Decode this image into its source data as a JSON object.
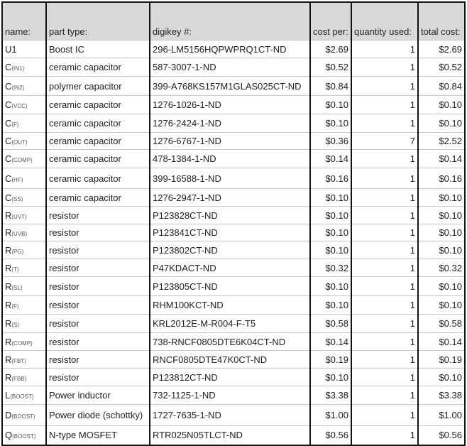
{
  "headers": [
    "name:",
    "part type:",
    "digikey #:",
    "cost per:",
    "quantity used:",
    "total cost:"
  ],
  "rows": [
    {
      "name": "U1",
      "sub": "",
      "type": "Boost IC",
      "digikey": "296-LM5156HQPWPRQ1CT-ND",
      "cost": "$2.69",
      "qty": "1",
      "total": "$2.69"
    },
    {
      "name": "C",
      "sub": "(IN1)",
      "type": "ceramic capacitor",
      "digikey": "587-3007-1-ND",
      "cost": "$0.52",
      "qty": "1",
      "total": "$0.52"
    },
    {
      "name": "C",
      "sub": "(IN2)",
      "type": "polymer capacitor",
      "digikey": "399-A768KS157M1GLAS025CT-ND",
      "cost": "$0.84",
      "qty": "1",
      "total": "$0.84"
    },
    {
      "name": "C",
      "sub": "(VCC)",
      "type": "ceramic capacitor",
      "digikey": "1276-1026-1-ND",
      "cost": "$0.10",
      "qty": "1",
      "total": "$0.10"
    },
    {
      "name": "C",
      "sub": "(F)",
      "type": "ceramic capacitor",
      "digikey": "1276-2424-1-ND",
      "cost": "$0.10",
      "qty": "1",
      "total": "$0.10"
    },
    {
      "name": "C",
      "sub": "(OUT)",
      "type": "ceramic capacitor",
      "digikey": "1276-6767-1-ND",
      "cost": "$0.36",
      "qty": "7",
      "total": "$2.52"
    },
    {
      "name": "C",
      "sub": "(COMP)",
      "type": "ceramic capacitor",
      "digikey": "478-1384-1-ND",
      "cost": "$0.14",
      "qty": "1",
      "total": "$0.14"
    },
    {
      "name": "C",
      "sub": "(HF)",
      "type": "ceramic capacitor",
      "digikey": "399-16588-1-ND",
      "cost": "$0.16",
      "qty": "1",
      "total": "$0.16"
    },
    {
      "name": "C",
      "sub": "(SS)",
      "type": "ceramic capacitor",
      "digikey": "1276-2947-1-ND",
      "cost": "$0.10",
      "qty": "1",
      "total": "$0.10"
    },
    {
      "name": "R",
      "sub": "(UVT)",
      "type": "resistor",
      "digikey": "P123828CT-ND",
      "cost": "$0.10",
      "qty": "1",
      "total": "$0.10"
    },
    {
      "name": "R",
      "sub": "(UVB)",
      "type": "resistor",
      "digikey": "P123841CT-ND",
      "cost": "$0.10",
      "qty": "1",
      "total": "$0.10"
    },
    {
      "name": "R",
      "sub": "(PG)",
      "type": "resistor",
      "digikey": "P123802CT-ND",
      "cost": "$0.10",
      "qty": "1",
      "total": "$0.10"
    },
    {
      "name": "R",
      "sub": "(T)",
      "type": "resistor",
      "digikey": "P47KDACT-ND",
      "cost": "$0.32",
      "qty": "1",
      "total": "$0.32"
    },
    {
      "name": "R",
      "sub": "(SL)",
      "type": "resistor",
      "digikey": "P123805CT-ND",
      "cost": "$0.10",
      "qty": "1",
      "total": "$0.10"
    },
    {
      "name": "R",
      "sub": "(F)",
      "type": "resistor",
      "digikey": "RHM100KCT-ND",
      "cost": "$0.10",
      "qty": "1",
      "total": "$0.10"
    },
    {
      "name": "R",
      "sub": "(S)",
      "type": "resistor",
      "digikey": "KRL2012E-M-R004-F-T5",
      "cost": "$0.58",
      "qty": "1",
      "total": "$0.58"
    },
    {
      "name": "R",
      "sub": "(COMP)",
      "type": "resistor",
      "digikey": "738-RNCF0805DTE6K04CT-ND",
      "cost": "$0.14",
      "qty": "1",
      "total": "$0.14"
    },
    {
      "name": "R",
      "sub": "(FBT)",
      "type": "resistor",
      "digikey": "RNCF0805DTE47K0CT-ND",
      "cost": "$0.19",
      "qty": "1",
      "total": "$0.19"
    },
    {
      "name": "R",
      "sub": "(FBB)",
      "type": "resistor",
      "digikey": "P123812CT-ND",
      "cost": "$0.10",
      "qty": "1",
      "total": "$0.10"
    },
    {
      "name": "L",
      "sub": "(BOOST)",
      "type": "Power inductor",
      "digikey": "732-1125-1-ND",
      "cost": "$3.38",
      "qty": "1",
      "total": "$3.38"
    },
    {
      "name": "D",
      "sub": "(BOOST)",
      "type": "Power diode (schottky)",
      "digikey": "1727-7635-1-ND",
      "cost": "$1.00",
      "qty": "1",
      "total": "$1.00"
    },
    {
      "name": "Q",
      "sub": "(BOOST)",
      "type": "N-type MOSFET",
      "digikey": "RTR025N05TLCT-ND",
      "cost": "$0.56",
      "qty": "1",
      "total": "$0.56"
    }
  ]
}
